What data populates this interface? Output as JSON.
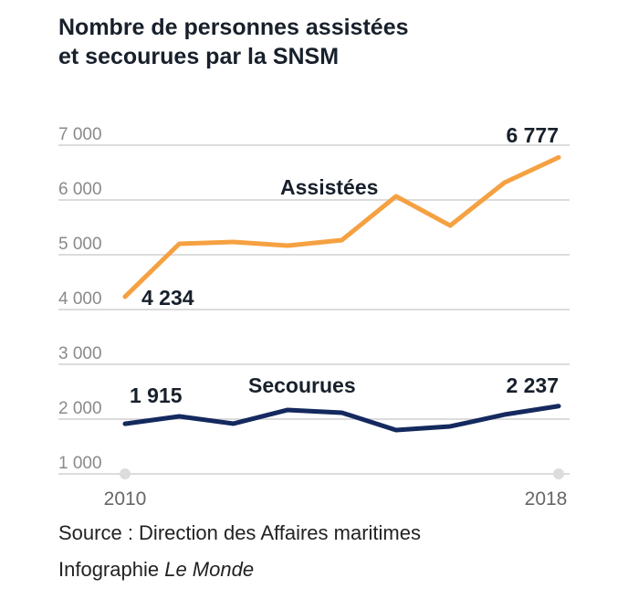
{
  "title_lines": [
    "Nombre de personnes assistées",
    "et secourues par la SNSM"
  ],
  "source": "Source : Direction des Affaires maritimes",
  "credit_prefix": "Infographie ",
  "credit_name": "Le Monde",
  "chart_data": {
    "type": "line",
    "title": "Nombre de personnes assistées et secourues par la SNSM",
    "x": [
      2010,
      2011,
      2012,
      2013,
      2014,
      2015,
      2016,
      2017,
      2018
    ],
    "x_tick_labels": [
      "2010",
      "2018"
    ],
    "y_ticks": [
      1000,
      2000,
      3000,
      4000,
      5000,
      6000,
      7000
    ],
    "y_tick_labels": [
      "1 000",
      "2 000",
      "3 000",
      "4 000",
      "5 000",
      "6 000",
      "7 000"
    ],
    "ylim": [
      1000,
      7000
    ],
    "grid": true,
    "series": [
      {
        "name": "Assistées",
        "color": "#f5a142",
        "values": [
          4234,
          5200,
          5233,
          5167,
          5267,
          6067,
          5533,
          6317,
          6777
        ],
        "start_label": "4 234",
        "end_label": "6 777"
      },
      {
        "name": "Secourues",
        "color": "#14295e",
        "values": [
          1915,
          2050,
          1917,
          2167,
          2117,
          1800,
          1867,
          2083,
          2237
        ],
        "start_label": "1 915",
        "end_label": "2 237"
      }
    ]
  }
}
